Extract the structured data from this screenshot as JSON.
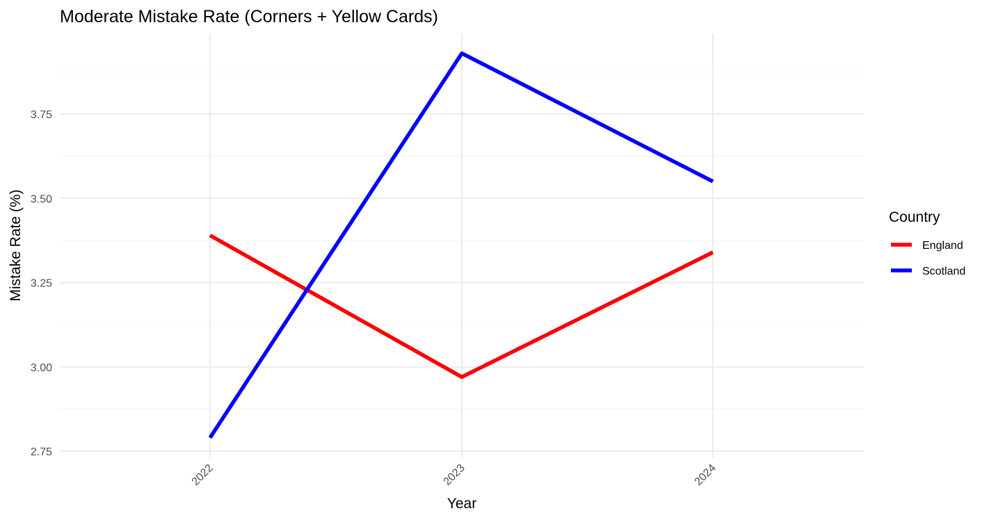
{
  "chart_data": {
    "type": "line",
    "title": "Moderate Mistake Rate (Corners + Yellow Cards)",
    "xlabel": "Year",
    "ylabel": "Mistake Rate (%)",
    "categories": [
      "2022",
      "2023",
      "2024"
    ],
    "y_ticks": [
      "2.75",
      "3.00",
      "3.25",
      "3.50",
      "3.75"
    ],
    "ylim": [
      2.75,
      3.9
    ],
    "grid": true,
    "x_tick_rotation": 45,
    "legend": {
      "title": "Country",
      "placement": "right"
    },
    "series": [
      {
        "name": "England",
        "color": "#ff0000",
        "values": [
          3.39,
          2.97,
          3.34
        ]
      },
      {
        "name": "Scotland",
        "color": "#0000ff",
        "values": [
          2.79,
          3.93,
          3.55
        ]
      }
    ]
  }
}
